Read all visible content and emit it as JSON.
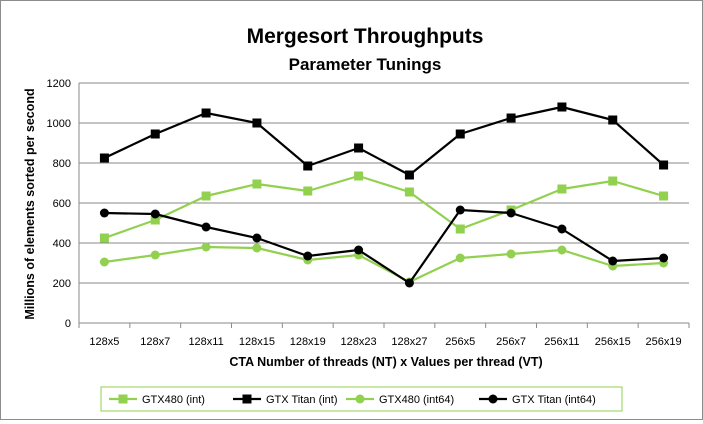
{
  "chart_data": {
    "type": "line",
    "title": "Mergesort Throughputs",
    "subtitle": "Parameter Tunings",
    "xlabel": "CTA Number of threads (NT) x Values per thread (VT)",
    "ylabel": "Millions of elements sorted per second",
    "ylim": [
      0,
      1200
    ],
    "yticks": [
      0,
      200,
      400,
      600,
      800,
      1000,
      1200
    ],
    "grid": true,
    "legend_position": "bottom",
    "categories": [
      "128x5",
      "128x7",
      "128x11",
      "128x15",
      "128x19",
      "128x23",
      "128x27",
      "256x5",
      "256x7",
      "256x11",
      "256x15",
      "256x19"
    ],
    "series": [
      {
        "name": "GTX480 (int)",
        "color": "#92d050",
        "marker": "square",
        "values": [
          425,
          515,
          635,
          695,
          660,
          735,
          655,
          470,
          565,
          670,
          710,
          635
        ]
      },
      {
        "name": "GTX Titan (int)",
        "color": "#000000",
        "marker": "square",
        "values": [
          825,
          945,
          1050,
          1000,
          785,
          875,
          740,
          945,
          1025,
          1080,
          1015,
          790
        ]
      },
      {
        "name": "GTX480 (int64)",
        "color": "#92d050",
        "marker": "circle",
        "values": [
          305,
          340,
          380,
          375,
          315,
          340,
          205,
          325,
          345,
          365,
          285,
          300
        ]
      },
      {
        "name": "GTX Titan (int64)",
        "color": "#000000",
        "marker": "circle",
        "values": [
          550,
          545,
          480,
          425,
          335,
          365,
          200,
          565,
          550,
          470,
          310,
          325
        ]
      }
    ]
  }
}
